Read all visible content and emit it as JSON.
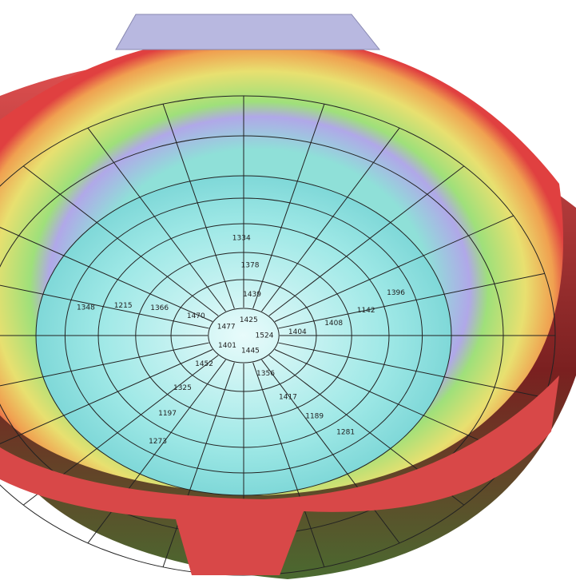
{
  "cell_labels": [
    "1524",
    "1445",
    "1401",
    "1477",
    "1425",
    "1404",
    "1356",
    "1452",
    "1470",
    "1439",
    "1408",
    "1417",
    "1325",
    "1366",
    "1378",
    "1142",
    "1189",
    "1197",
    "1215",
    "1334",
    "1396",
    "1281",
    "1273",
    "1348"
  ]
}
